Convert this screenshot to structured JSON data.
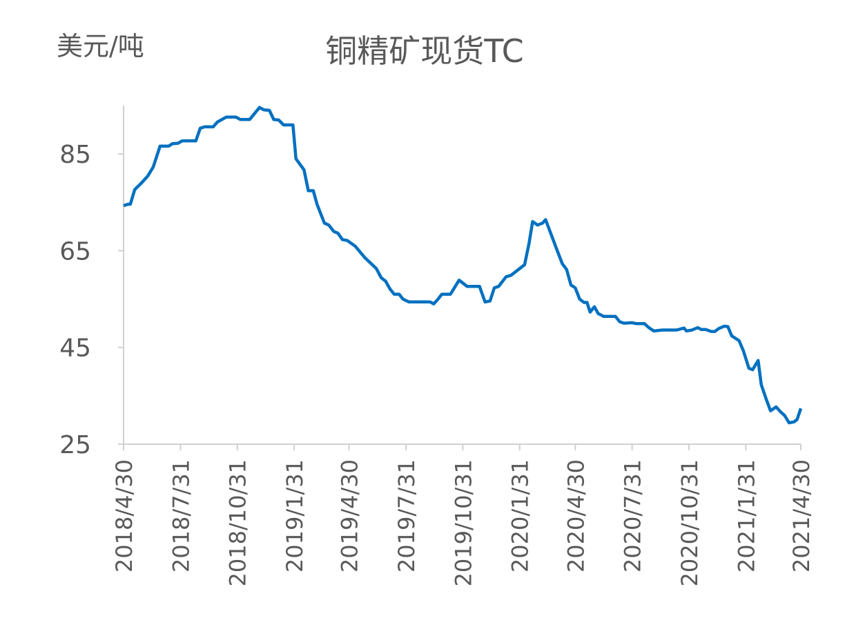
{
  "chart_data": {
    "type": "line",
    "title": "铜精矿现货TC",
    "y_label": "美元/吨",
    "x": [
      "2018/4/30",
      "2018/5/7",
      "2018/5/11",
      "2018/5/18",
      "2018/5/29",
      "2018/6/8",
      "2018/6/17",
      "2018/6/28",
      "2018/7/12",
      "2018/7/18",
      "2018/7/27",
      "2018/8/3",
      "2018/8/25",
      "2018/9/1",
      "2018/9/8",
      "2018/9/22",
      "2018/9/29",
      "2018/10/13",
      "2018/10/29",
      "2018/11/5",
      "2018/11/20",
      "2018/12/6",
      "2018/12/13",
      "2018/12/22",
      "2018/12/29",
      "2019/1/6",
      "2019/1/14",
      "2019/1/29",
      "2019/2/3",
      "2019/2/16",
      "2019/2/23",
      "2019/3/3",
      "2019/3/9",
      "2019/3/21",
      "2019/3/28",
      "2019/4/5",
      "2019/4/12",
      "2019/4/19",
      "2019/4/27",
      "2019/5/10",
      "2019/5/25",
      "2019/6/13",
      "2019/6/21",
      "2019/6/28",
      "2019/7/5",
      "2019/7/12",
      "2019/7/20",
      "2019/7/26",
      "2019/8/5",
      "2019/9/8",
      "2019/9/14",
      "2019/9/21",
      "2019/9/27",
      "2019/10/11",
      "2019/10/25",
      "2019/11/7",
      "2019/11/27",
      "2019/12/6",
      "2019/12/14",
      "2019/12/21",
      "2019/12/28",
      "2020/1/9",
      "2020/1/17",
      "2020/2/8",
      "2020/2/15",
      "2020/2/21",
      "2020/2/29",
      "2020/3/8",
      "2020/3/13",
      "2020/3/31",
      "2020/4/9",
      "2020/4/16",
      "2020/4/23",
      "2020/4/30",
      "2020/5/7",
      "2020/5/14",
      "2020/5/19",
      "2020/5/24",
      "2020/5/31",
      "2020/6/6",
      "2020/6/15",
      "2020/7/4",
      "2020/7/11",
      "2020/7/18",
      "2020/7/31",
      "2020/8/7",
      "2020/8/20",
      "2020/8/27",
      "2020/9/4",
      "2020/9/18",
      "2020/10/11",
      "2020/10/23",
      "2020/10/27",
      "2020/11/5",
      "2020/11/14",
      "2020/11/20",
      "2020/11/27",
      "2020/12/6",
      "2020/12/12",
      "2020/12/18",
      "2020/12/27",
      "2021/1/2",
      "2021/1/8",
      "2021/1/14",
      "2021/1/20",
      "2021/1/27",
      "2021/2/5",
      "2021/2/11",
      "2021/2/20",
      "2021/2/25",
      "2021/3/5",
      "2021/3/12",
      "2021/3/21",
      "2021/3/28",
      "2021/4/4",
      "2021/4/11",
      "2021/4/19",
      "2021/4/24",
      "2021/4/30"
    ],
    "series": [
      {
        "name": "铜精矿现货TC",
        "color": "#0070c0",
        "values": [
          74.3,
          74.6,
          74.6,
          77.6,
          79.0,
          80.4,
          82.3,
          86.6,
          86.6,
          87.1,
          87.2,
          87.7,
          87.7,
          90.3,
          90.6,
          90.6,
          91.6,
          92.6,
          92.6,
          92.1,
          92.1,
          94.6,
          94.1,
          94.0,
          92.1,
          92.0,
          91.0,
          91.0,
          84.0,
          81.7,
          77.4,
          77.4,
          74.6,
          70.7,
          70.3,
          69.0,
          68.6,
          67.3,
          67.1,
          65.9,
          63.6,
          61.3,
          59.4,
          58.7,
          57.1,
          56.0,
          56.0,
          55.0,
          54.4,
          54.4,
          54.0,
          55.0,
          56.0,
          56.0,
          58.9,
          57.6,
          57.6,
          54.4,
          54.6,
          57.3,
          57.6,
          59.6,
          59.9,
          62.1,
          66.4,
          71.0,
          70.3,
          70.7,
          71.4,
          65.3,
          62.3,
          61.1,
          57.9,
          57.3,
          55.0,
          54.3,
          54.3,
          52.3,
          53.4,
          52.0,
          51.4,
          51.4,
          50.3,
          50.0,
          50.1,
          49.9,
          49.9,
          49.1,
          48.4,
          48.6,
          48.6,
          49.0,
          48.4,
          48.6,
          49.1,
          48.7,
          48.7,
          48.3,
          48.3,
          48.9,
          49.4,
          49.3,
          47.4,
          46.9,
          46.4,
          44.3,
          40.7,
          40.4,
          42.3,
          37.3,
          34.3,
          31.9,
          32.7,
          31.7,
          30.9,
          29.4,
          29.6,
          30.1,
          32.4
        ]
      }
    ],
    "xlim": [
      "2018/4/30",
      "2021/4/30"
    ],
    "xticks": [
      "2018/4/30",
      "2018/7/31",
      "2018/10/31",
      "2019/1/31",
      "2019/4/30",
      "2019/7/31",
      "2019/10/31",
      "2020/1/31",
      "2020/4/30",
      "2020/7/31",
      "2020/10/31",
      "2021/1/31",
      "2021/4/30"
    ],
    "ylim": [
      25,
      95
    ],
    "yticks": [
      25,
      45,
      65,
      85
    ],
    "grid": false
  }
}
